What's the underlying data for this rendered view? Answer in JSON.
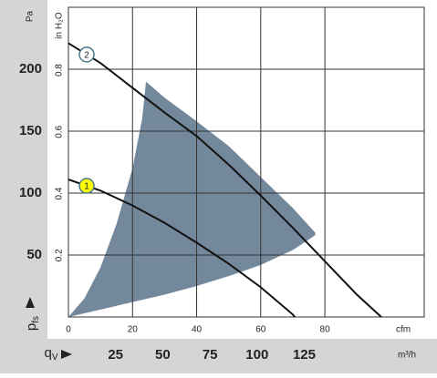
{
  "chart_data": {
    "type": "line",
    "x_unit": "cfm",
    "x2_unit": "m³/h",
    "y_unit": "Pa",
    "y2_unit": "in H₂O",
    "y_label": {
      "main": "p",
      "sub": "fs"
    },
    "x_label": {
      "main": "q",
      "sub": "V"
    },
    "xlim": [
      0,
      111
    ],
    "xticks": [
      0,
      20,
      40,
      60,
      80
    ],
    "x2lim": [
      0,
      188.6
    ],
    "x2ticks": [
      25,
      50,
      75,
      100,
      125
    ],
    "ylim": [
      0,
      250
    ],
    "yticks": [
      50,
      100,
      150,
      200
    ],
    "y2lim": [
      0,
      1.004
    ],
    "y2ticks": [
      0.2,
      0.4,
      0.6,
      0.8
    ],
    "grid": true,
    "region": {
      "color": "#74889c",
      "x": [
        0,
        10,
        20,
        30,
        40,
        50,
        60,
        70,
        77,
        77,
        70,
        60,
        50,
        40,
        30,
        24.2,
        23,
        20,
        15,
        10,
        5
      ],
      "y": [
        0,
        6,
        12,
        18,
        25,
        33,
        42,
        54,
        66,
        68,
        88,
        113,
        138,
        158,
        177,
        190,
        160,
        120,
        75,
        40,
        15
      ]
    },
    "series": [
      {
        "name": "2",
        "color": "#111111",
        "marker_color": "#ffffff",
        "x": [
          0,
          10,
          20,
          30,
          40,
          50,
          60,
          70,
          80,
          90,
          97.6
        ],
        "values": [
          221,
          205,
          185,
          165,
          146,
          123,
          98,
          72,
          45,
          18,
          0
        ]
      },
      {
        "name": "1",
        "color": "#111111",
        "marker_color": "#ffff00",
        "x": [
          0,
          10,
          20,
          30,
          40,
          50,
          60,
          70,
          70.6
        ],
        "values": [
          111,
          102,
          90,
          76,
          60,
          43,
          24,
          2,
          0
        ]
      }
    ]
  }
}
